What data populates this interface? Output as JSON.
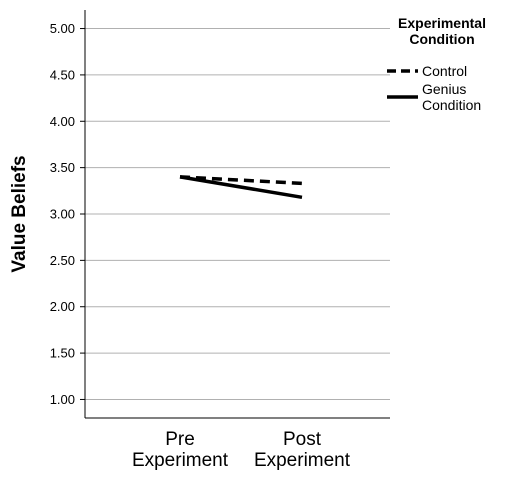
{
  "chart_data": {
    "type": "line",
    "categories": [
      "Pre Experiment",
      "Post Experiment"
    ],
    "category_lines": [
      [
        "Pre",
        "Experiment"
      ],
      [
        "Post",
        "Experiment"
      ]
    ],
    "ylabel": "Value Beliefs",
    "xlabel": "",
    "ylim": [
      0.8,
      5.2
    ],
    "yticks": [
      "1.00",
      "1.50",
      "2.00",
      "2.50",
      "3.00",
      "3.50",
      "4.00",
      "4.50",
      "5.00"
    ],
    "grid": true,
    "legend": {
      "placement": "right",
      "title_lines": [
        "Experimental",
        "Condition"
      ]
    },
    "series": [
      {
        "name": "Control",
        "name_lines": [
          "Control"
        ],
        "values": [
          3.4,
          3.33
        ],
        "style": "dashed",
        "color": "#000000"
      },
      {
        "name": "Genius Condition",
        "name_lines": [
          "Genius",
          "Condition"
        ],
        "values": [
          3.4,
          3.18
        ],
        "style": "solid",
        "color": "#000000"
      }
    ]
  }
}
